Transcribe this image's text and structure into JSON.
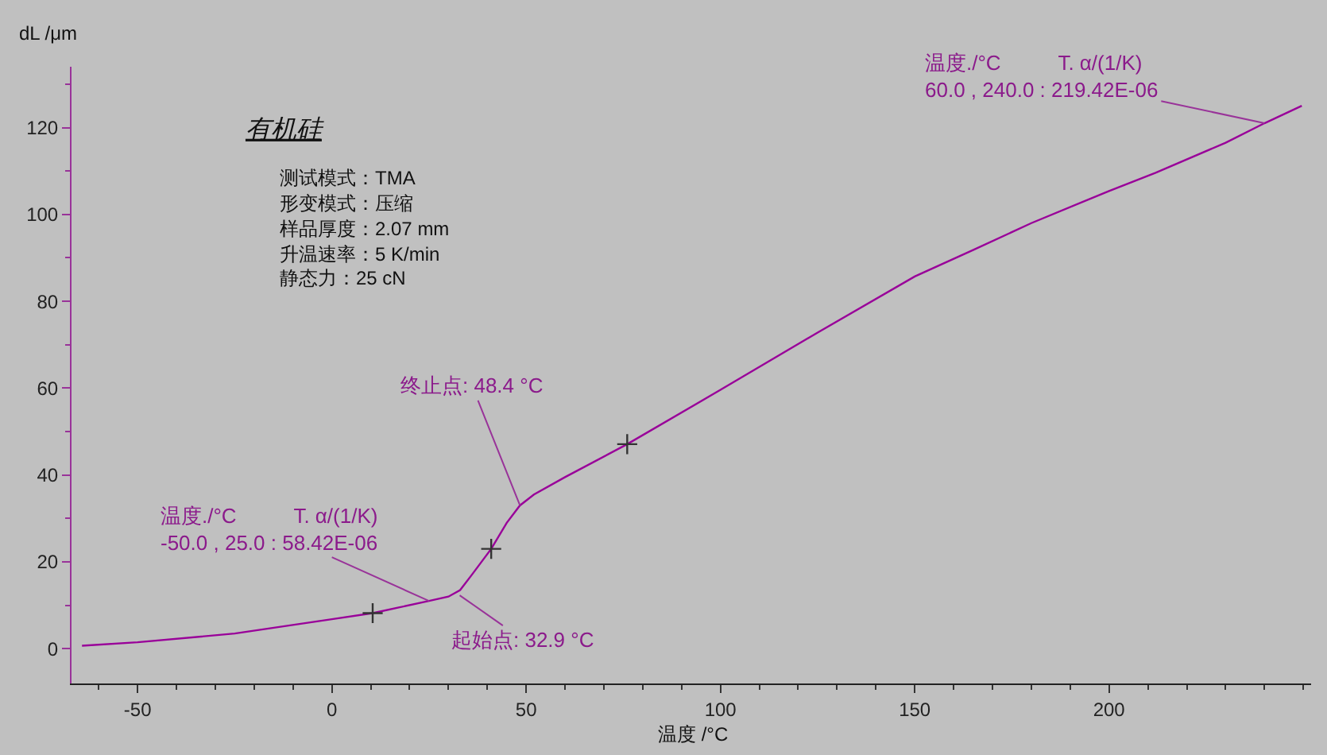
{
  "chart_data": {
    "type": "line",
    "title": "有机硅",
    "xlabel": "温度 /°C",
    "ylabel": "dL /μm",
    "xlim": [
      -67,
      252
    ],
    "xticks": [
      -50,
      0,
      50,
      100,
      150,
      200
    ],
    "ylim": [
      -8,
      134
    ],
    "yticks": [
      0,
      20,
      40,
      60,
      80,
      100,
      120
    ],
    "grid": false,
    "series": [
      {
        "color": "#990099",
        "marker": "none",
        "line_style": "solid",
        "x": [
          -64.3,
          -50,
          -25,
          0,
          10.5,
          25,
          30,
          33,
          36,
          41,
          45,
          48.4,
          52,
          60,
          76,
          100,
          125,
          150,
          165,
          180,
          200,
          212,
          230,
          240,
          249.6
        ],
        "values": [
          0.7,
          1.5,
          3.5,
          6.8,
          8.2,
          11,
          12,
          13.5,
          17,
          23,
          29,
          33,
          35.5,
          39.5,
          47.1,
          59.6,
          72.8,
          85.7,
          91.8,
          98,
          105.4,
          109.6,
          116.5,
          121,
          125
        ]
      },
      {
        "type": "scatter",
        "color": "#333333",
        "marker": "cross",
        "x": [
          10.5,
          41,
          76
        ],
        "values": [
          8.2,
          23,
          47.1
        ]
      }
    ],
    "annotations": [
      "测试模式：TMA",
      "形变模式：压缩",
      "样品厚度：2.07 mm",
      "升温速率：5 K/min",
      "静态力：25 cN",
      {
        "text": "温度./°C          T. α/(1/K)\n-50.0 , 25.0 : 58.42E-06",
        "x": 25,
        "y": 11
      },
      {
        "text": "起始点: 32.9 °C",
        "x": 32.9,
        "y": 12.3
      },
      {
        "text": "终止点: 48.4 °C",
        "x": 48.4,
        "y": 33
      },
      {
        "text": "温度./°C          T. α/(1/K)\n60.0 , 240.0 : 219.42E-06",
        "x": 240,
        "y": 121
      }
    ]
  }
}
